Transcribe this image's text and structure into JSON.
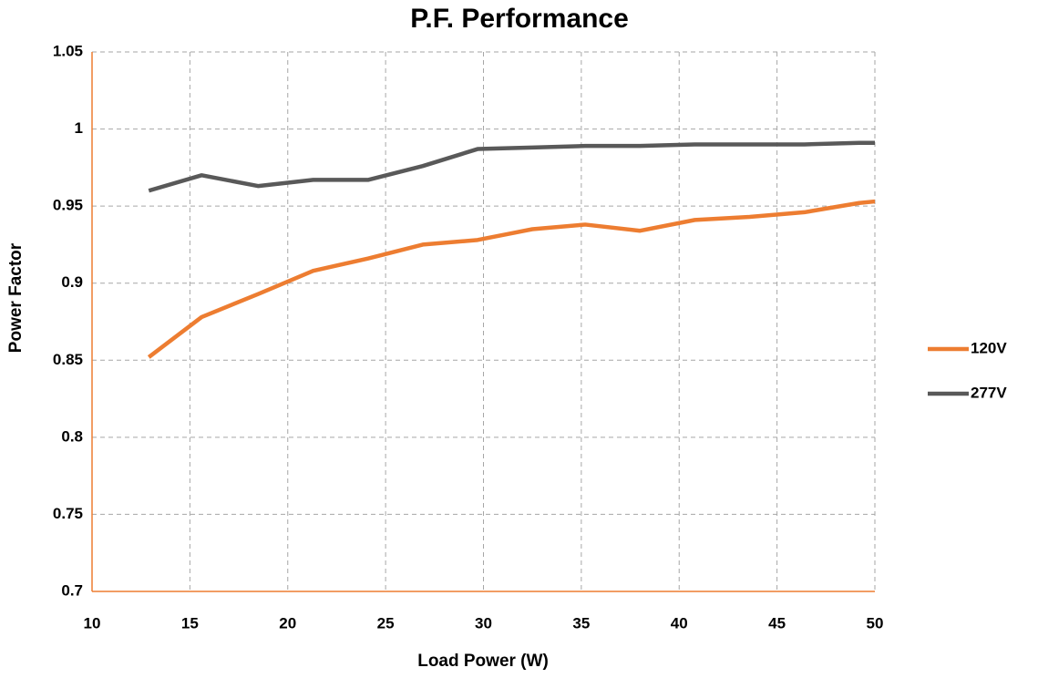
{
  "chart_data": {
    "type": "line",
    "title": "P.F. Performance",
    "x_label": "Load Power (W)",
    "y_label": "Power Factor",
    "x": [
      12.9,
      15.6,
      18.5,
      21.3,
      24.1,
      26.9,
      29.7,
      32.5,
      35.2,
      38.0,
      40.8,
      43.6,
      46.4,
      49.2,
      50
    ],
    "series": [
      {
        "name": "120V",
        "color": "#ed7d31",
        "values": [
          0.852,
          0.878,
          0.893,
          0.908,
          0.916,
          0.925,
          0.928,
          0.935,
          0.938,
          0.934,
          0.941,
          0.943,
          0.946,
          0.952,
          0.953
        ]
      },
      {
        "name": "277V",
        "color": "#595959",
        "values": [
          0.96,
          0.97,
          0.963,
          0.967,
          0.967,
          0.976,
          0.987,
          0.988,
          0.989,
          0.989,
          0.99,
          0.99,
          0.99,
          0.991,
          0.991
        ]
      }
    ],
    "xlim": [
      10,
      50
    ],
    "xticks": [
      10,
      15,
      20,
      25,
      30,
      35,
      40,
      45,
      50
    ],
    "ylim": [
      0.7,
      1.05
    ],
    "yticks": [
      0.7,
      0.75,
      0.8,
      0.85,
      0.9,
      0.95,
      1,
      1.05
    ],
    "grid": true,
    "legend": "right",
    "axis_color": "#ed7d31"
  }
}
